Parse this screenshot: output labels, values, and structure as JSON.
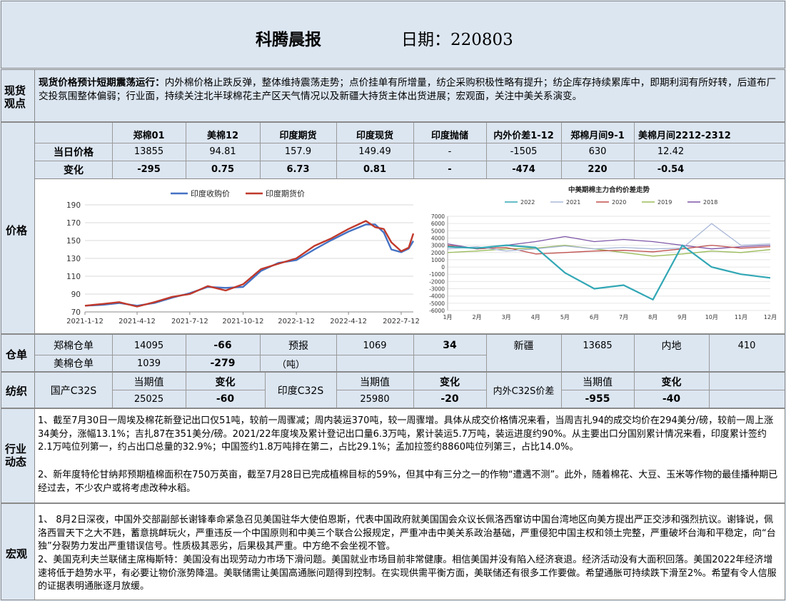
{
  "header": {
    "title": "科腾晨报",
    "date_label": "日期：220803"
  },
  "sections": {
    "spot": "现货观点",
    "price": "价格",
    "warehouse": "仓单",
    "textile": "纺织",
    "industry": "行业动态",
    "macro": "宏观"
  },
  "spot": {
    "lead": "现货价格预计短期震荡运行：",
    "body": "内外棉价格止跌反弹，整体维持震荡走势；点价挂单有所增量，纺企采购积极性略有提升；纺企库存持续累库中，即期利润有所好转，后道布厂交投氛围整体偏弱；行业面，持续关注北半球棉花主产区天气情况以及新疆大持货主体出货进展；宏观面，关注中美关系演变。"
  },
  "price_table": {
    "headers": [
      "郑棉01",
      "美棉12",
      "印度期货",
      "印度现货",
      "印度抛储",
      "内外价差1-12",
      "郑棉月间9-1",
      "美棉月间2212-2312"
    ],
    "row1_label": "当日价格",
    "row1": [
      "13855",
      "94.81",
      "157.9",
      "149.49",
      "-",
      "-1505",
      "630",
      "12.42"
    ],
    "row2_label": "变化",
    "row2": [
      "-295",
      "0.75",
      "6.73",
      "0.81",
      "-",
      "-474",
      "220",
      "-0.54"
    ]
  },
  "chart_data": [
    {
      "type": "line",
      "legend_position": "top-center",
      "x_ticks": [
        "2021-1-12",
        "2021-4-12",
        "2021-7-12",
        "2021-10-12",
        "2022-1-12",
        "2022-4-12",
        "2022-7-12"
      ],
      "x_dates": [
        "2021-01-12",
        "2021-02-12",
        "2021-03-12",
        "2021-04-12",
        "2021-05-12",
        "2021-06-12",
        "2021-07-12",
        "2021-08-12",
        "2021-09-12",
        "2021-10-12",
        "2021-11-12",
        "2021-12-12",
        "2022-01-12",
        "2022-02-12",
        "2022-03-12",
        "2022-04-12",
        "2022-05-12",
        "2022-05-28",
        "2022-06-12",
        "2022-06-25",
        "2022-07-12",
        "2022-07-25",
        "2022-08-02"
      ],
      "ylim": [
        70,
        190
      ],
      "y_ticks": [
        70,
        90,
        110,
        130,
        150,
        170,
        190
      ],
      "grid": true,
      "series": [
        {
          "name": "印度收购价",
          "color": "#4472c4",
          "values": [
            77,
            78,
            80,
            77,
            80,
            86,
            91,
            98,
            97,
            98,
            116,
            125,
            128,
            140,
            150,
            160,
            168,
            168,
            159,
            140,
            137,
            141,
            149.49
          ]
        },
        {
          "name": "印度期货价",
          "color": "#c0392b",
          "values": [
            77,
            79,
            81,
            76,
            81,
            87,
            90,
            99,
            94,
            101,
            118,
            124,
            130,
            144,
            152,
            163,
            172,
            165,
            163,
            148,
            138,
            142,
            157.9
          ]
        }
      ]
    },
    {
      "type": "line",
      "title": "中美期棉主力合约价差走势",
      "legend_position": "top-center",
      "x_ticks": [
        "1月",
        "2月",
        "3月",
        "4月",
        "5月",
        "6月",
        "7月",
        "8月",
        "9月",
        "10月",
        "11月",
        "12月"
      ],
      "ylim": [
        -6000,
        7000
      ],
      "y_ticks": [
        -6000,
        -5000,
        -4000,
        -3000,
        -2000,
        -1000,
        0,
        1000,
        2000,
        3000,
        4000,
        5000,
        6000,
        7000
      ],
      "grid": true,
      "series": [
        {
          "name": "2022",
          "color": "#31a7b5",
          "values": [
            2800,
            2600,
            3000,
            2700,
            -800,
            -3000,
            -2500,
            -4500,
            3000,
            0,
            -1000,
            -1500
          ]
        },
        {
          "name": "2021",
          "color": "#a9b8d8",
          "values": [
            2500,
            2800,
            2200,
            2500,
            2900,
            2500,
            2700,
            2500,
            2600,
            6000,
            3000,
            3200
          ]
        },
        {
          "name": "2020",
          "color": "#c0504d",
          "values": [
            3000,
            2500,
            2700,
            1800,
            2000,
            2200,
            2300,
            2100,
            2500,
            3000,
            2600,
            2800
          ]
        },
        {
          "name": "2019",
          "color": "#9bbb59",
          "values": [
            2000,
            2200,
            2500,
            2600,
            3000,
            2500,
            2000,
            1500,
            1800,
            2200,
            2000,
            2400
          ]
        },
        {
          "name": "2018",
          "color": "#7e57a8",
          "values": [
            3200,
            2500,
            3000,
            3500,
            4200,
            3500,
            3800,
            3500,
            3000,
            2500,
            2800,
            3000
          ]
        }
      ]
    }
  ],
  "warehouse": {
    "zheng_label": "郑棉仓单",
    "zheng_value": "14095",
    "zheng_change": "-66",
    "forecast_label": "预报",
    "forecast_value": "1069",
    "forecast_change": "34",
    "xinjiang_label": "新疆",
    "xinjiang_value": "13685",
    "inland_label": "内地",
    "inland_value": "410",
    "us_label": "美棉仓单",
    "us_value": "1039",
    "us_change": "-279",
    "unit": "（吨）"
  },
  "textile": {
    "cur_label": "当期值",
    "chg_label": "变化",
    "domestic_label": "国产C32S",
    "domestic_value": "25025",
    "domestic_change": "-60",
    "india_label": "印度C32S",
    "india_value": "25980",
    "india_change": "-20",
    "spread_label": "内外C32S价差",
    "spread_value": "-955",
    "spread_change": "-40"
  },
  "industry": {
    "p1": "1、截至7月30日一周埃及棉花新登记出口仅51吨，较前一周骤减；周内装运370吨，较一周骤增。具体从成交价格情况来看，当周吉扎94的成交均价在294美分/磅，较前一周上涨34美分，涨幅13.1%；吉扎87在351美分/磅。2021/22年度埃及累计登记出口量6.3万吨，累计装运5.7万吨，装运进度约90%。从主要出口分国别累计情况来看，印度累计签约2.1万吨位列第一，约占出口总量的32.9%；中国签约1.8万吨排在第二，占比29.1%；孟加拉签约8860吨位列第三，占比14.0%。",
    "p2": "2、新年度特伦甘纳邦预期植棉面积在750万英亩，截至7月28日已完成植棉目标的59%，但其中有三分之一的作物“遭遇不测”。此外，随着棉花、大豆、玉米等作物的最佳播种期已经过去，不少农户或将考虑改种水稻。"
  },
  "macro": {
    "p1": "1、 8月2日深夜，中国外交部副部长谢锋奉命紧急召见美国驻华大使伯恩斯，代表中国政府就美国国会众议长佩洛西窜访中国台湾地区向美方提出严正交涉和强烈抗议。谢锋说，佩洛西冒天下之大不韪，蓄意挑衅玩火，严重违反一个中国原则和中美三个联合公报规定，严重冲击中美关系政治基础，严重侵犯中国主权和领土完整，严重破坏台海和平稳定，向“台独”分裂势力发出严重错误信号。性质极其恶劣，后果极其严重。中方绝不会坐视不管。",
    "p2": "2、美国克利夫兰联储主席梅斯特：美国没有出现劳动力市场下滑问题。美国就业市场目前非常健康。相信美国并没有陷入经济衰退。经济活动没有大面积回落。美国2022年经济增速将低于趋势水平，有必要让物价涨势降温。美联储需让美国高通胀问题得到控制。在实现供需平衡方面，美联储还有很多工作要做。希望通胀可持续跌下滑至2%。希望有令人信服的证据表明通胀逐月放缓。"
  }
}
